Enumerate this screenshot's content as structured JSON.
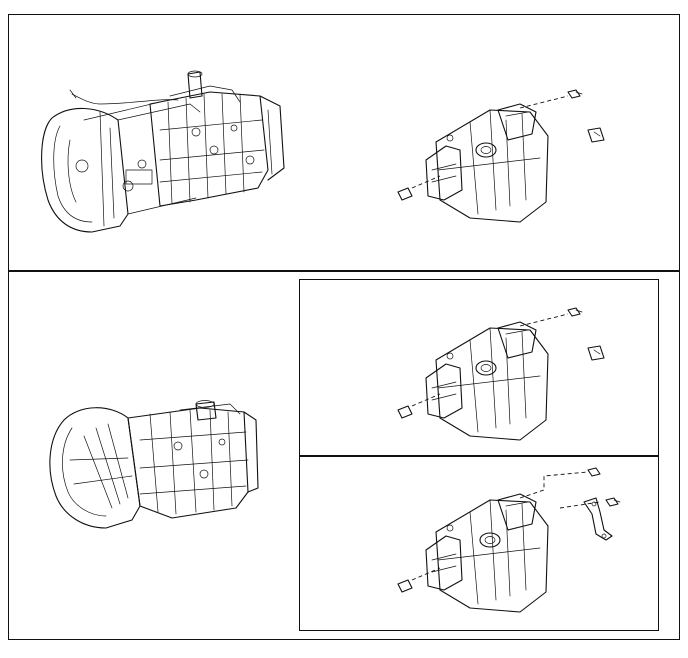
{
  "diagram": {
    "panels": [
      {
        "id": "top",
        "parts": [
          "transmission-assembly",
          "transfer-case-with-bolts-and-clip"
        ]
      },
      {
        "id": "bottom-left",
        "parts": [
          "transmission-assembly-bell-housing"
        ]
      },
      {
        "id": "bottom-right-upper",
        "parts": [
          "transfer-case-with-bolts-and-clip"
        ]
      },
      {
        "id": "bottom-right-lower",
        "parts": [
          "transfer-case-with-bolts-and-bracket"
        ]
      }
    ],
    "line_color": "#111111",
    "background_color": "#ffffff"
  }
}
